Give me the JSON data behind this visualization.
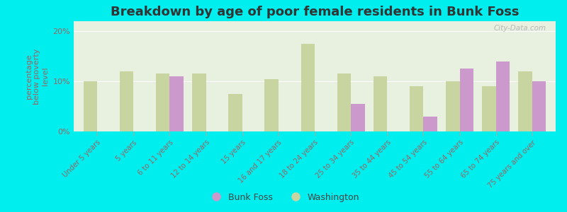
{
  "title": "Breakdown by age of poor female residents in Bunk Foss",
  "ylabel": "percentage\nbelow poverty\nlevel",
  "categories": [
    "Under 5 years",
    "5 years",
    "6 to 11 years",
    "12 to 14 years",
    "15 years",
    "16 and 17 years",
    "18 to 24 years",
    "25 to 34 years",
    "35 to 44 years",
    "45 to 54 years",
    "55 to 64 years",
    "65 to 74 years",
    "75 years and over"
  ],
  "bunk_foss": [
    0,
    0,
    11.0,
    0,
    0,
    0,
    0,
    5.5,
    0,
    3.0,
    12.5,
    14.0,
    10.0
  ],
  "washington": [
    10.0,
    12.0,
    11.5,
    11.5,
    7.5,
    10.5,
    17.5,
    11.5,
    11.0,
    9.0,
    10.0,
    9.0,
    12.0
  ],
  "bunk_foss_color": "#cc99cc",
  "washington_color": "#c8d5a0",
  "background_color": "#00eeee",
  "plot_bg_color": "#e8f0e0",
  "ylim": [
    0,
    22
  ],
  "yticks": [
    0,
    10,
    20
  ],
  "ytick_labels": [
    "0%",
    "10%",
    "20%"
  ],
  "bar_width": 0.38,
  "title_fontsize": 13,
  "legend_bunk_foss": "Bunk Foss",
  "legend_washington": "Washington",
  "watermark": "City-Data.com",
  "tick_color": "#996666",
  "label_color": "#996666"
}
